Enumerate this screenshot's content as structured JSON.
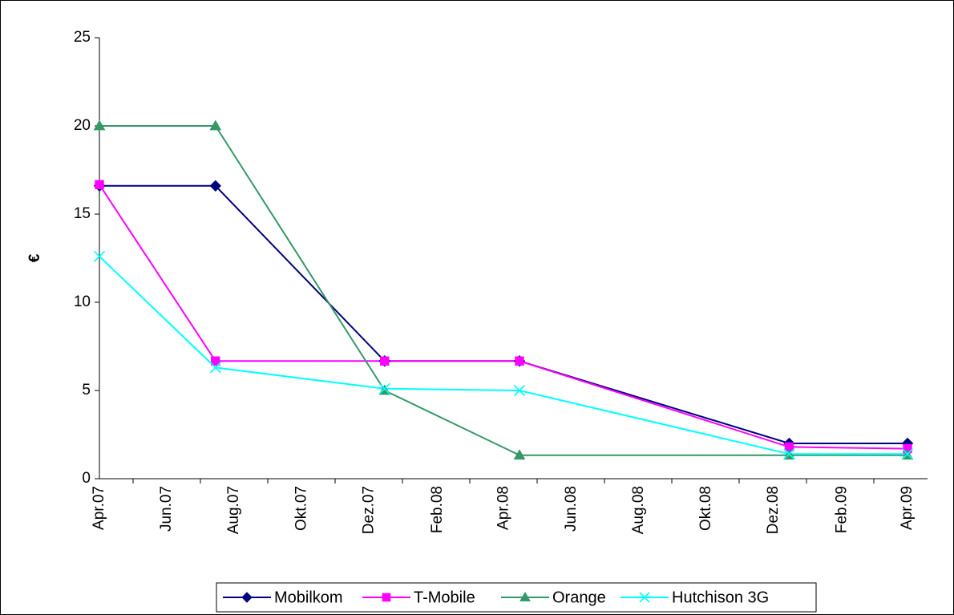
{
  "chart_data": {
    "type": "line",
    "title": "",
    "xlabel": "",
    "ylabel": "€",
    "ylim": [
      0,
      25
    ],
    "yticks": [
      0,
      5,
      10,
      15,
      20,
      25
    ],
    "xlim": [
      "2007-04-01",
      "2009-04-01"
    ],
    "xticks": [
      {
        "date": "2007-04-01",
        "label": "Apr.07"
      },
      {
        "date": "2007-06-01",
        "label": "Jun.07"
      },
      {
        "date": "2007-08-01",
        "label": "Aug.07"
      },
      {
        "date": "2007-10-01",
        "label": "Okt.07"
      },
      {
        "date": "2007-12-01",
        "label": "Dez.07"
      },
      {
        "date": "2008-02-01",
        "label": "Feb.08"
      },
      {
        "date": "2008-04-01",
        "label": "Apr.08"
      },
      {
        "date": "2008-06-01",
        "label": "Jun.08"
      },
      {
        "date": "2008-08-01",
        "label": "Aug.08"
      },
      {
        "date": "2008-10-01",
        "label": "Okt.08"
      },
      {
        "date": "2008-12-01",
        "label": "Dez.08"
      },
      {
        "date": "2009-02-01",
        "label": "Feb.09"
      },
      {
        "date": "2009-04-01",
        "label": "Apr.09"
      }
    ],
    "grid": false,
    "legend_position": "bottom",
    "series": [
      {
        "name": "Mobilkom",
        "color": "#000080",
        "marker": "diamond",
        "x": [
          "2007-04-01",
          "2007-07-15",
          "2007-12-15",
          "2008-04-15",
          "2008-12-15",
          "2009-04-01"
        ],
        "values": [
          16.6,
          16.6,
          6.67,
          6.67,
          2.0,
          2.0
        ]
      },
      {
        "name": "T-Mobile",
        "color": "#ff00ff",
        "marker": "square",
        "x": [
          "2007-04-01",
          "2007-07-15",
          "2007-12-15",
          "2008-04-15",
          "2008-12-15",
          "2009-04-01"
        ],
        "values": [
          16.67,
          6.67,
          6.67,
          6.67,
          1.8,
          1.7
        ]
      },
      {
        "name": "Orange",
        "color": "#339966",
        "marker": "triangle",
        "x": [
          "2007-04-01",
          "2007-07-15",
          "2007-12-15",
          "2008-04-15",
          "2008-12-15",
          "2009-04-01"
        ],
        "values": [
          20.0,
          20.0,
          5.0,
          1.33,
          1.33,
          1.33
        ]
      },
      {
        "name": "Hutchison 3G",
        "color": "#00ffff",
        "marker": "x",
        "x": [
          "2007-04-01",
          "2007-07-15",
          "2007-12-15",
          "2008-04-15",
          "2008-12-15",
          "2009-04-01"
        ],
        "values": [
          12.6,
          6.3,
          5.1,
          5.0,
          1.4,
          1.4
        ]
      }
    ]
  }
}
